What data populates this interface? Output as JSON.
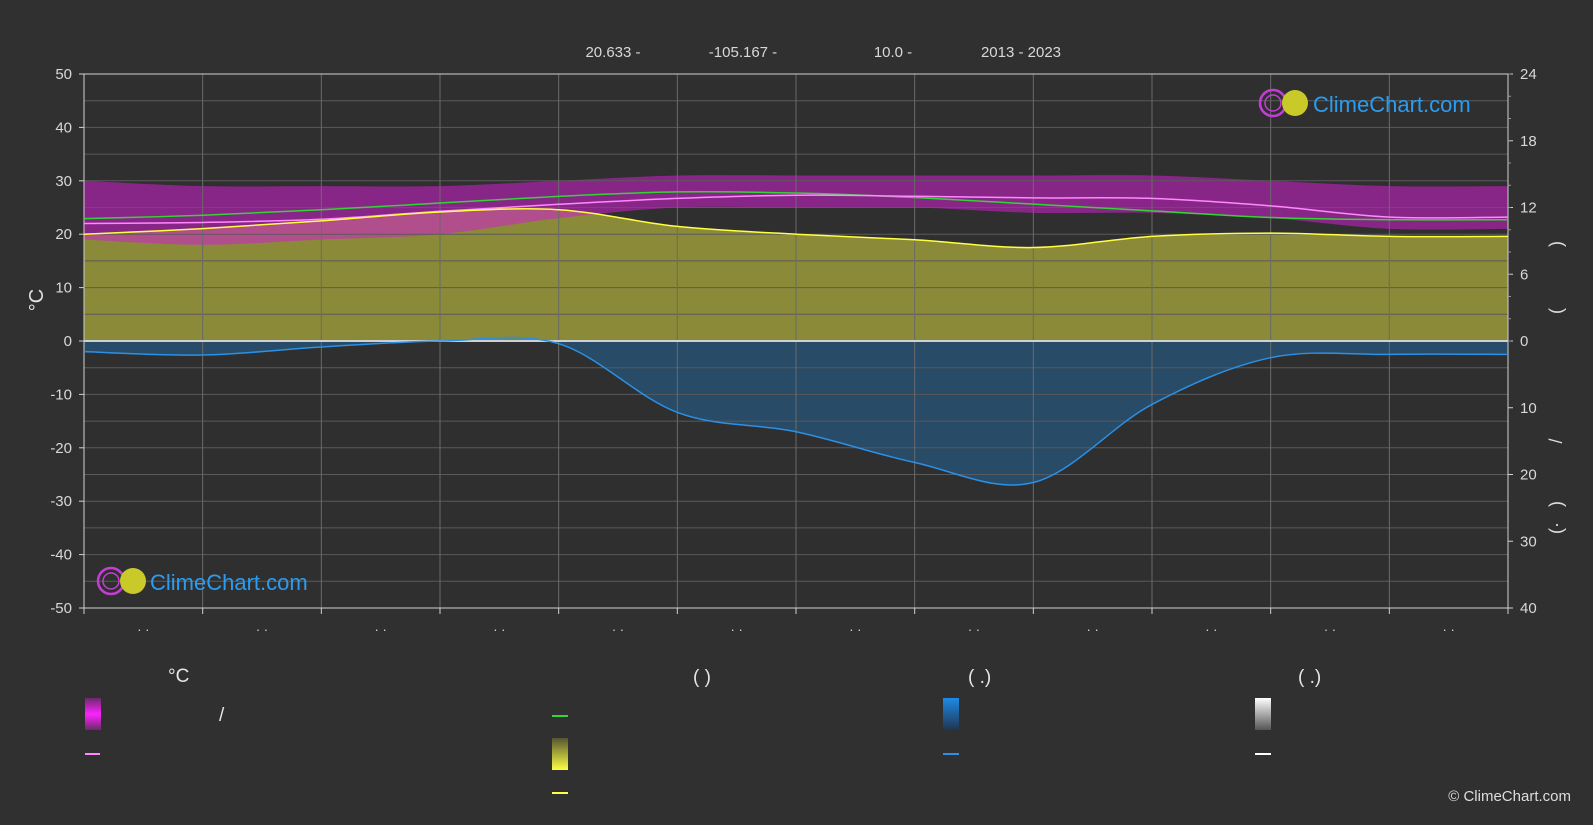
{
  "header": {
    "lat": "20.633 -",
    "lon": "-105.167 -",
    "elev": "10.0 -",
    "years": "2013 - 2023"
  },
  "watermark": "ClimeChart.com",
  "copyright": "© ClimeChart.com",
  "axis": {
    "left_label": "°C",
    "left_ticks": [
      "50",
      "40",
      "30",
      "20",
      "10",
      "0",
      "-10",
      "-20",
      "-30",
      "-40",
      "-50"
    ],
    "right_top_ticks": [
      "24",
      "18",
      "12",
      "6",
      "0"
    ],
    "right_bottom_ticks": [
      "10",
      "20",
      "30",
      "40"
    ],
    "right_upper_label_fragments": [
      ")",
      "("
    ],
    "right_lower_label_fragments": [
      "/",
      ")",
      "(·"
    ],
    "x_tick_label": "· ·"
  },
  "legend": {
    "col1_heading": "°C",
    "col1_slash": "/",
    "col2_heading": "(            )",
    "col3_heading": "(    .)",
    "col4_heading": "(    .)"
  },
  "colors": {
    "background": "#303030",
    "temp_range": "#d21fd2",
    "temp_mean": "#ff88ff",
    "daylight": "#35d335",
    "sunshine": "#c9c93a",
    "sunshine_line": "#ffff44",
    "precip": "#1e82d2",
    "precip_line": "#2b90e6",
    "brand_blue": "#2b9cf0"
  },
  "chart_data": {
    "type": "line",
    "x_months": 12,
    "ylim_left": [
      -50,
      50
    ],
    "ylim_right_top": [
      0,
      24
    ],
    "ylim_right_bottom": [
      0,
      40
    ],
    "series": [
      {
        "key": "daylight",
        "values": [
          11.0,
          11.3,
          11.8,
          12.4,
          13.0,
          13.4,
          13.3,
          12.9,
          12.3,
          11.7,
          11.1,
          10.9,
          10.9
        ],
        "unit": "hours"
      },
      {
        "key": "sunshine",
        "values": [
          9.6,
          10.1,
          10.8,
          11.6,
          11.8,
          10.3,
          9.6,
          9.1,
          8.4,
          9.4,
          9.7,
          9.4,
          9.4
        ],
        "unit": "hours"
      },
      {
        "key": "temp_mean",
        "values": [
          22.0,
          22.2,
          22.8,
          24.3,
          25.6,
          26.7,
          27.3,
          27.1,
          26.8,
          26.7,
          25.3,
          23.2,
          23.2
        ],
        "unit": "°C"
      },
      {
        "key": "precip",
        "values": [
          1.6,
          2.1,
          0.9,
          0.0,
          0.4,
          10.7,
          13.6,
          18.2,
          21.2,
          9.5,
          2.5,
          2.0,
          2.0
        ],
        "unit": "mm/day"
      }
    ],
    "temp_band": {
      "max": [
        30,
        29,
        29,
        29,
        30,
        31,
        31,
        31,
        31,
        31,
        30,
        29,
        29
      ],
      "min": [
        19,
        18,
        19,
        20,
        23,
        25,
        25,
        25,
        24,
        24,
        23,
        21,
        21
      ]
    }
  }
}
